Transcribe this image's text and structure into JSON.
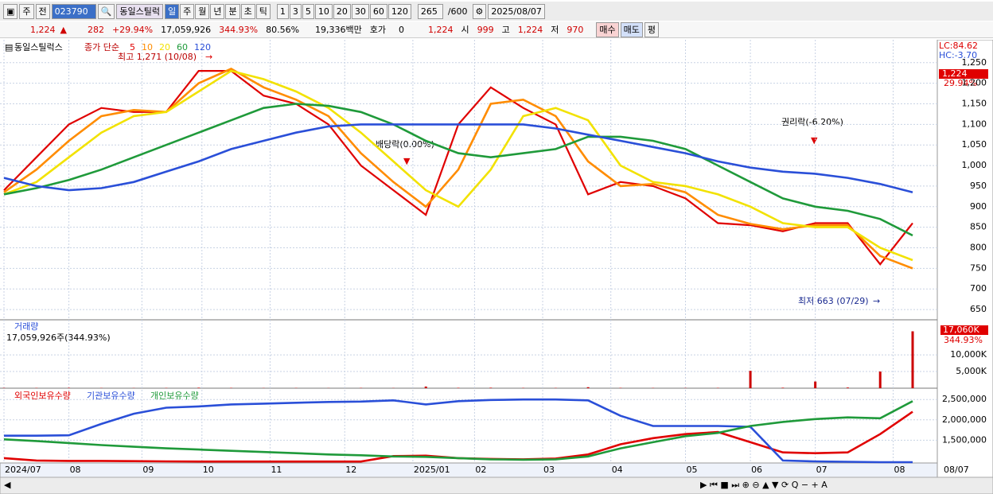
{
  "toolbar": {
    "mode": "주",
    "prev": "전",
    "code": "023790",
    "name": "동일스틸럭",
    "periods": [
      "일",
      "주",
      "월",
      "년",
      "분",
      "초",
      "틱"
    ],
    "intervals": [
      "1",
      "3",
      "5",
      "10",
      "20",
      "30",
      "60",
      "120"
    ],
    "count": "265",
    "max": "/600",
    "date": "2025/08/07"
  },
  "info_bar": {
    "price": "1,224",
    "change": "282",
    "change_rate": "+29.94%",
    "volume": "17,059,926",
    "volume_rate": "344.93%",
    "turnover": "80.56%",
    "amount": "19,336백만",
    "quote_label": "호가",
    "quote": "0",
    "quote_price": "1,224",
    "open_label": "시",
    "open": "999",
    "high_label": "고",
    "high": "1,224",
    "low_label": "저",
    "low": "970",
    "buy": "매수",
    "sell": "매도",
    "avg": "평"
  },
  "chart_data": [
    {
      "type": "line",
      "title": "동일스틸럭스",
      "subtitle": "종가 단순",
      "series": [
        {
          "name": "5",
          "color": "#e00000",
          "values": [
            940,
            1020,
            1100,
            1140,
            1130,
            1130,
            1230,
            1230,
            1170,
            1150,
            1100,
            1000,
            940,
            880,
            1100,
            1190,
            1140,
            1100,
            930,
            960,
            950,
            920,
            860,
            855,
            840,
            860,
            860,
            760,
            860
          ]
        },
        {
          "name": "10",
          "color": "#ff8c00",
          "values": [
            935,
            990,
            1060,
            1120,
            1135,
            1130,
            1200,
            1235,
            1190,
            1160,
            1120,
            1030,
            960,
            900,
            990,
            1150,
            1160,
            1120,
            1010,
            950,
            955,
            935,
            880,
            858,
            845,
            855,
            855,
            780,
            750
          ]
        },
        {
          "name": "20",
          "color": "#f2e200",
          "values": [
            930,
            960,
            1020,
            1080,
            1120,
            1130,
            1180,
            1230,
            1210,
            1180,
            1140,
            1080,
            1010,
            940,
            900,
            990,
            1120,
            1140,
            1110,
            1000,
            960,
            950,
            930,
            900,
            860,
            850,
            850,
            800,
            770
          ]
        },
        {
          "name": "60",
          "color": "#1f9a3a",
          "values": [
            930,
            945,
            965,
            990,
            1020,
            1050,
            1080,
            1110,
            1140,
            1150,
            1145,
            1130,
            1100,
            1060,
            1030,
            1020,
            1030,
            1040,
            1070,
            1070,
            1060,
            1040,
            1000,
            960,
            920,
            900,
            890,
            870,
            830
          ]
        },
        {
          "name": "120",
          "color": "#2a4fd8",
          "values": [
            970,
            950,
            940,
            945,
            960,
            985,
            1010,
            1040,
            1060,
            1080,
            1095,
            1100,
            1100,
            1100,
            1100,
            1100,
            1100,
            1090,
            1075,
            1060,
            1045,
            1030,
            1010,
            995,
            985,
            980,
            970,
            955,
            935
          ]
        }
      ],
      "ylim": [
        625,
        1296
      ],
      "yticks": [
        650,
        700,
        750,
        800,
        850,
        900,
        950,
        {
          "value": 1000,
          "label": "1,000"
        },
        {
          "value": 1050,
          "label": "1,050"
        },
        {
          "value": 1100,
          "label": "1,100"
        },
        {
          "value": 1150,
          "label": "1,150"
        },
        {
          "value": 1200,
          "label": "1,200"
        },
        {
          "value": 1250,
          "label": "1,250"
        }
      ],
      "annotations": [
        "최고 1,271 (10/08)",
        "배당락(0.00%)",
        "권리락(-6.20%)",
        "최저 663 (07/29)"
      ],
      "right_labels": [
        "LC:84.62",
        "HC:-3.70",
        "1,224",
        "29.94%"
      ]
    },
    {
      "type": "bar",
      "title": "거래량",
      "subtitle": "17,059,926주(344.93%)",
      "color": "#cc0000",
      "values": [
        90000,
        80000,
        120000,
        70000,
        60000,
        80000,
        150000,
        90000,
        60000,
        70000,
        50000,
        90000,
        60000,
        500000,
        120000,
        150000,
        90000,
        80000,
        300000,
        100000,
        80000,
        70000,
        90000,
        5200000,
        150000,
        2000000,
        200000,
        5000000,
        17059926
      ],
      "ylim": [
        0,
        19800000
      ],
      "yticks": [
        {
          "value": 5000000,
          "label": "5,000K"
        },
        {
          "value": 10000000,
          "label": "10,000K"
        }
      ],
      "right_labels": [
        "17,060K",
        "344.93%"
      ]
    },
    {
      "type": "line",
      "series": [
        {
          "name": "외국인보유수량",
          "color": "#e00000",
          "values": [
            1060000,
            1000000,
            990000,
            990000,
            985000,
            980000,
            975000,
            975000,
            975000,
            975000,
            975000,
            975000,
            1110000,
            1120000,
            1060000,
            1040000,
            1030000,
            1050000,
            1150000,
            1400000,
            1550000,
            1650000,
            1700000,
            1450000,
            1200000,
            1180000,
            1200000,
            1650000,
            2200000
          ]
        },
        {
          "name": "기관보유수량",
          "color": "#2a4fd8",
          "values": [
            1610000,
            1610000,
            1620000,
            1900000,
            2150000,
            2300000,
            2330000,
            2380000,
            2400000,
            2420000,
            2440000,
            2450000,
            2480000,
            2380000,
            2460000,
            2490000,
            2500000,
            2500000,
            2480000,
            2100000,
            1850000,
            1850000,
            1850000,
            1830000,
            1000000,
            980000,
            970000,
            960000,
            960000
          ]
        },
        {
          "name": "개인보유수량",
          "color": "#1f9a3a",
          "values": [
            1520000,
            1480000,
            1430000,
            1380000,
            1340000,
            1300000,
            1270000,
            1240000,
            1210000,
            1180000,
            1150000,
            1130000,
            1100000,
            1090000,
            1060000,
            1030000,
            1020000,
            1030000,
            1100000,
            1300000,
            1450000,
            1600000,
            1680000,
            1850000,
            1950000,
            2020000,
            2060000,
            2040000,
            2460000
          ]
        }
      ],
      "ylim": [
        940000,
        2720000
      ],
      "yticks": [
        {
          "value": 1500000,
          "label": "1,500,000"
        },
        {
          "value": 2000000,
          "label": "2,000,000"
        },
        {
          "value": 2500000,
          "label": "2,500,000"
        }
      ],
      "xlim": [
        0,
        28
      ],
      "xticks": [
        {
          "value": 0,
          "label": "2024/07"
        },
        {
          "value": 2,
          "label": "08"
        },
        {
          "value": 4.25,
          "label": "09"
        },
        {
          "value": 6.1,
          "label": "10"
        },
        {
          "value": 8.2,
          "label": "11"
        },
        {
          "value": 10.5,
          "label": "12"
        },
        {
          "value": 12.6,
          "label": "2025/01"
        },
        {
          "value": 14.5,
          "label": "02"
        },
        {
          "value": 16.6,
          "label": "03"
        },
        {
          "value": 18.7,
          "label": "04"
        },
        {
          "value": 21,
          "label": "05"
        },
        {
          "value": 23,
          "label": "06"
        },
        {
          "value": 25,
          "label": "07"
        },
        {
          "value": 27.4,
          "label": "08"
        }
      ],
      "end_label": "08/07"
    }
  ]
}
